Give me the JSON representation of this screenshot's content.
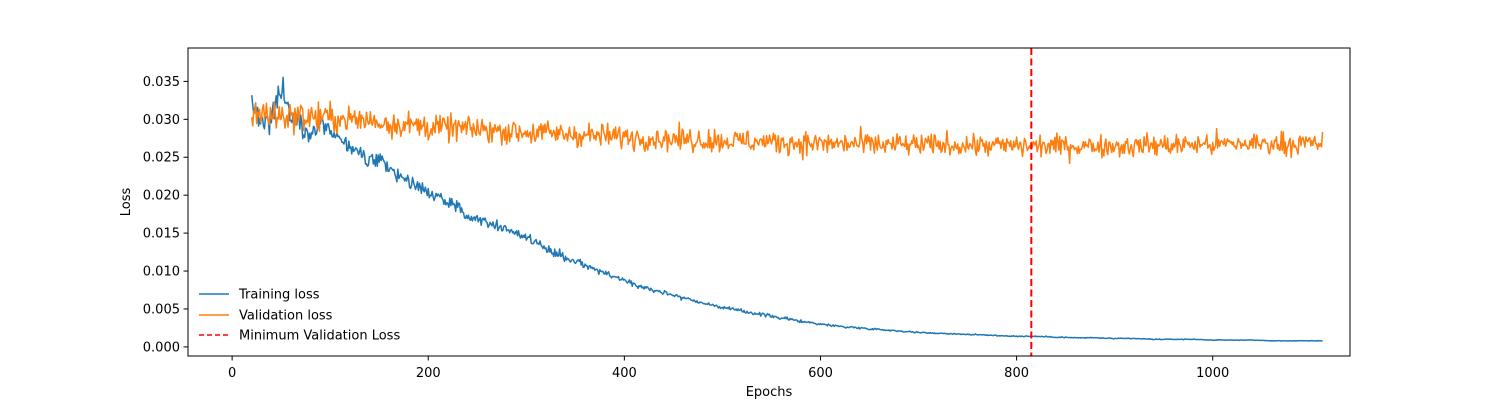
{
  "chart_data": {
    "type": "line",
    "title": "",
    "xlabel": "Epochs",
    "ylabel": "Loss",
    "xlim": [
      -45,
      1140
    ],
    "ylim": [
      -0.0012,
      0.0394
    ],
    "xticks": [
      0,
      200,
      400,
      600,
      800,
      1000
    ],
    "xtick_labels": [
      "0",
      "200",
      "400",
      "600",
      "800",
      "1000"
    ],
    "yticks": [
      0.0,
      0.005,
      0.01,
      0.015,
      0.02,
      0.025,
      0.03,
      0.035
    ],
    "ytick_labels": [
      "0.000",
      "0.005",
      "0.010",
      "0.015",
      "0.020",
      "0.025",
      "0.030",
      "0.035"
    ],
    "grid": false,
    "legend_position": "lower-left",
    "series": [
      {
        "name": "Training loss",
        "color": "#1f77b4",
        "x": [
          20,
          30,
          40,
          50,
          60,
          70,
          80,
          90,
          100,
          110,
          120,
          130,
          140,
          150,
          160,
          170,
          180,
          190,
          200,
          220,
          240,
          260,
          280,
          300,
          320,
          340,
          360,
          380,
          400,
          420,
          440,
          460,
          480,
          500,
          520,
          540,
          560,
          580,
          600,
          620,
          640,
          660,
          680,
          700,
          720,
          740,
          760,
          780,
          800,
          815,
          840,
          860,
          880,
          900,
          920,
          940,
          960,
          980,
          1000,
          1020,
          1040,
          1060,
          1080,
          1100,
          1112
        ],
        "y": [
          0.032,
          0.0295,
          0.0305,
          0.034,
          0.031,
          0.0295,
          0.028,
          0.0295,
          0.0285,
          0.0275,
          0.026,
          0.0255,
          0.0245,
          0.0245,
          0.0235,
          0.0225,
          0.022,
          0.021,
          0.0205,
          0.019,
          0.0175,
          0.0165,
          0.0155,
          0.0145,
          0.013,
          0.0118,
          0.0108,
          0.0097,
          0.0088,
          0.0078,
          0.0072,
          0.0065,
          0.0058,
          0.0052,
          0.0047,
          0.0043,
          0.0038,
          0.0034,
          0.003,
          0.0027,
          0.0025,
          0.0023,
          0.0021,
          0.0019,
          0.0018,
          0.0017,
          0.0016,
          0.0015,
          0.0014,
          0.0014,
          0.0013,
          0.0012,
          0.0012,
          0.0011,
          0.0011,
          0.001,
          0.001,
          0.001,
          0.0009,
          0.0009,
          0.0009,
          0.0008,
          0.0008,
          0.0008,
          0.0008
        ],
        "noise": [
          0.0025,
          0.0025,
          0.0025,
          0.003,
          0.0025,
          0.002,
          0.0018,
          0.0015,
          0.0015,
          0.0015,
          0.0015,
          0.0014,
          0.0013,
          0.0013,
          0.0012,
          0.0012,
          0.0011,
          0.0011,
          0.001,
          0.001,
          0.0009,
          0.0009,
          0.0008,
          0.0008,
          0.0007,
          0.0007,
          0.0006,
          0.0006,
          0.0005,
          0.0005,
          0.0004,
          0.0004,
          0.0003,
          0.0003,
          0.0003,
          0.0003,
          0.00025,
          0.00025,
          0.0002,
          0.0002,
          0.00015,
          0.00015,
          0.00012,
          0.00012,
          0.0001,
          0.0001,
          0.0001,
          0.0001,
          0.0001,
          0.0001,
          0.0001,
          8e-05,
          8e-05,
          7e-05,
          7e-05,
          7e-05,
          6e-05,
          6e-05,
          6e-05,
          5e-05,
          5e-05,
          5e-05,
          5e-05,
          5e-05,
          5e-05
        ]
      },
      {
        "name": "Validation loss",
        "color": "#ff7f0e",
        "x": [
          20,
          40,
          60,
          80,
          100,
          120,
          140,
          160,
          180,
          200,
          250,
          300,
          350,
          400,
          450,
          500,
          550,
          600,
          650,
          700,
          750,
          800,
          850,
          900,
          950,
          1000,
          1050,
          1112
        ],
        "y": [
          0.031,
          0.0305,
          0.0305,
          0.0303,
          0.0302,
          0.03,
          0.0298,
          0.0295,
          0.0293,
          0.029,
          0.0287,
          0.0283,
          0.028,
          0.0277,
          0.0274,
          0.0272,
          0.027,
          0.0268,
          0.0267,
          0.0266,
          0.0266,
          0.0265,
          0.0265,
          0.0265,
          0.0266,
          0.0267,
          0.0268,
          0.0268
        ],
        "noise": [
          0.0028,
          0.0028,
          0.0026,
          0.0025,
          0.0025,
          0.0024,
          0.0024,
          0.0023,
          0.0022,
          0.0022,
          0.0021,
          0.0021,
          0.002,
          0.002,
          0.002,
          0.002,
          0.002,
          0.002,
          0.002,
          0.0019,
          0.0019,
          0.0019,
          0.0019,
          0.0019,
          0.0019,
          0.0019,
          0.0019,
          0.0019
        ]
      }
    ],
    "vline": {
      "name": "Minimum Validation Loss",
      "x": 815,
      "color": "#ff0000",
      "style": "dashed"
    }
  }
}
